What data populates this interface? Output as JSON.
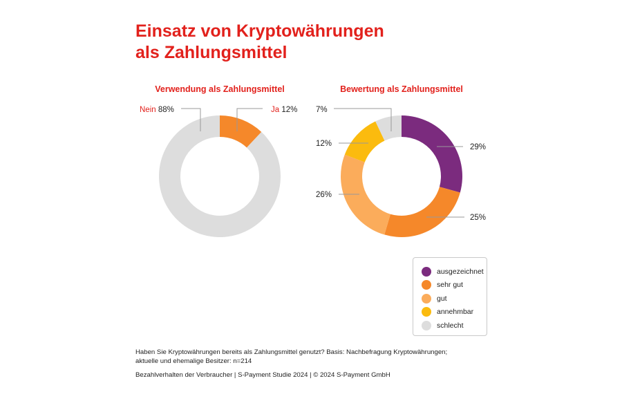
{
  "title": {
    "line1": "Einsatz von Kryptowährungen",
    "line2": "als Zahlungsmittel"
  },
  "chart_data": [
    {
      "type": "pie",
      "variant": "donut",
      "title": "Verwendung als Zahlungsmittel",
      "slices": [
        {
          "label": "Ja",
          "value": 12,
          "display": "12%",
          "color": "#f5882a"
        },
        {
          "label": "Nein",
          "value": 88,
          "display": "88%",
          "color": "#dddddd"
        }
      ]
    },
    {
      "type": "pie",
      "variant": "donut",
      "title": "Bewertung als Zahlungsmittel",
      "slices": [
        {
          "label": "ausgezeichnet",
          "value": 29,
          "display": "29%",
          "color": "#7b2b7e"
        },
        {
          "label": "sehr gut",
          "value": 25,
          "display": "25%",
          "color": "#f5882a"
        },
        {
          "label": "gut",
          "value": 26,
          "display": "26%",
          "color": "#fbac5b"
        },
        {
          "label": "annehmbar",
          "value": 12,
          "display": "12%",
          "color": "#fbbb0e"
        },
        {
          "label": "schlecht",
          "value": 7,
          "display": "7%",
          "color": "#dddddd"
        }
      ]
    }
  ],
  "colors": {
    "accent": "#e2211c",
    "leader": "#999999"
  },
  "legend": [
    {
      "label": "ausgezeichnet",
      "color": "#7b2b7e"
    },
    {
      "label": "sehr gut",
      "color": "#f5882a"
    },
    {
      "label": "gut",
      "color": "#fbac5b"
    },
    {
      "label": "annehmbar",
      "color": "#fbbb0e"
    },
    {
      "label": "schlecht",
      "color": "#dddddd"
    }
  ],
  "footer": {
    "question": "Haben Sie Kryptowährungen bereits als Zahlungsmittel genutzt? Basis: Nachbefragung Kryptowährungen;",
    "basis": "aktuelle und ehemalige Besitzer: n=214",
    "source": "Bezahlverhalten der Verbraucher  |  S-Payment Studie 2024  |  © 2024 S-Payment GmbH"
  }
}
